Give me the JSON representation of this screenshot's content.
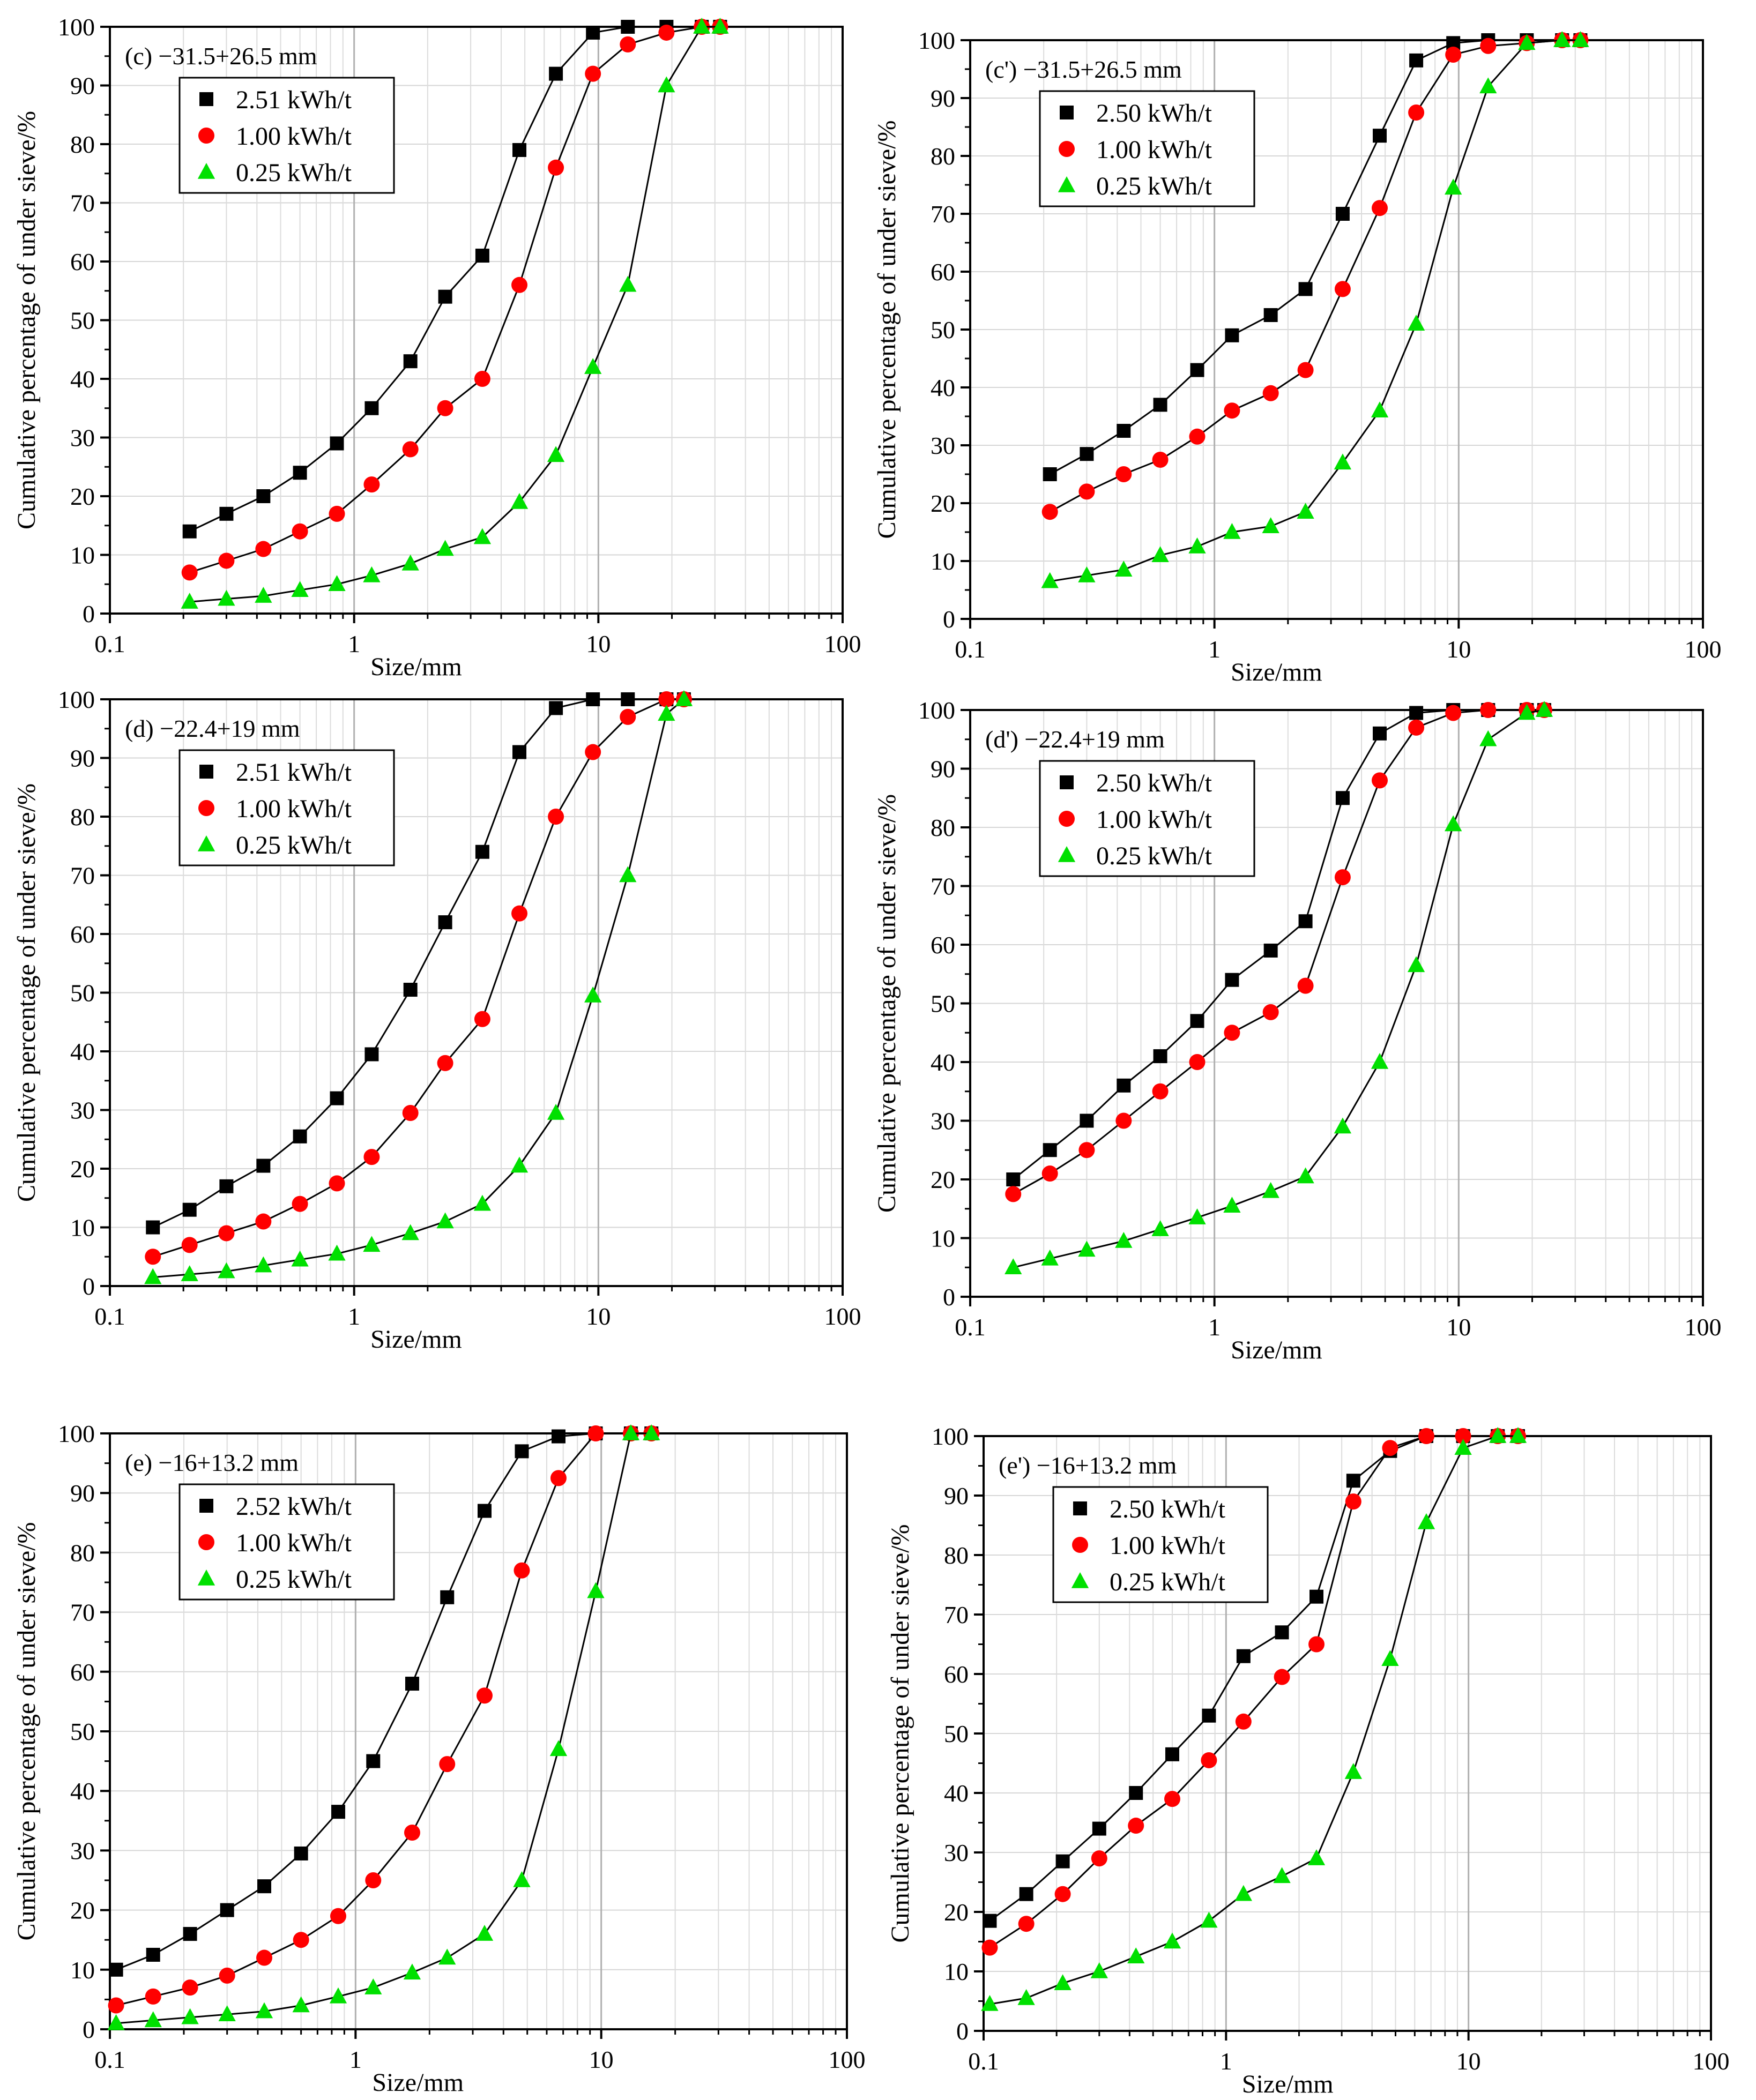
{
  "figure": {
    "series_colors": [
      "#000000",
      "#ff0000",
      "#00e000"
    ],
    "markers": [
      "square",
      "circle",
      "triangle"
    ]
  },
  "chart_data": [
    {
      "id": "c",
      "type": "line",
      "title": "(c) −31.5+26.5 mm",
      "xlabel": "Size/mm",
      "ylabel": "Cumulative percentage of under sieve/%",
      "xscale": "log",
      "xlim": [
        0.1,
        100
      ],
      "ylim": [
        0,
        100
      ],
      "xticks": [
        "0.1",
        "1",
        "10",
        "100"
      ],
      "yticks": [
        "0",
        "10",
        "20",
        "30",
        "40",
        "50",
        "60",
        "70",
        "80",
        "90",
        "100"
      ],
      "legend_position": "top-left",
      "x": [
        0.212,
        0.3,
        0.425,
        0.6,
        0.85,
        1.18,
        1.7,
        2.36,
        3.35,
        4.75,
        6.7,
        9.5,
        13.2,
        19,
        26.5,
        31.5
      ],
      "series": [
        {
          "name": "2.51 kWh/t",
          "values": [
            14,
            17,
            20,
            24,
            29,
            35,
            43,
            54,
            61,
            79,
            92,
            99,
            100,
            100,
            100,
            100
          ]
        },
        {
          "name": "1.00 kWh/t",
          "values": [
            7,
            9,
            11,
            14,
            17,
            22,
            28,
            35,
            40,
            56,
            76,
            92,
            97,
            99,
            100,
            100
          ]
        },
        {
          "name": "0.25 kWh/t",
          "values": [
            2,
            2.5,
            3,
            4,
            5,
            6.5,
            8.5,
            11,
            13,
            19,
            27,
            42,
            56,
            90,
            100,
            100
          ]
        }
      ]
    },
    {
      "id": "c'",
      "type": "line",
      "title": "(c') −31.5+26.5 mm",
      "xlabel": "Size/mm",
      "ylabel": "Cumulative percentage of under sieve/%",
      "xscale": "log",
      "xlim": [
        0.1,
        100
      ],
      "ylim": [
        0,
        100
      ],
      "xticks": [
        "0.1",
        "1",
        "10",
        "100"
      ],
      "yticks": [
        "0",
        "10",
        "20",
        "30",
        "40",
        "50",
        "60",
        "70",
        "80",
        "90",
        "100"
      ],
      "legend_position": "top-left",
      "x": [
        0.212,
        0.3,
        0.425,
        0.6,
        0.85,
        1.18,
        1.7,
        2.36,
        3.35,
        4.75,
        6.7,
        9.5,
        13.2,
        19,
        26.5,
        31.5
      ],
      "series": [
        {
          "name": "2.50 kWh/t",
          "values": [
            25,
            28.5,
            32.5,
            37,
            43,
            49,
            52.5,
            57,
            70,
            83.5,
            96.5,
            99.5,
            100,
            100,
            100,
            100
          ]
        },
        {
          "name": "1.00 kWh/t",
          "values": [
            18.5,
            22,
            25,
            27.5,
            31.5,
            36,
            39,
            43,
            57,
            71,
            87.5,
            97.5,
            99,
            99.5,
            100,
            100
          ]
        },
        {
          "name": "0.25 kWh/t",
          "values": [
            6.5,
            7.5,
            8.5,
            11,
            12.5,
            15,
            16,
            18.5,
            27,
            36,
            51,
            74.5,
            92,
            99.5,
            100,
            100
          ]
        }
      ]
    },
    {
      "id": "d",
      "type": "line",
      "title": "(d) −22.4+19 mm",
      "xlabel": "Size/mm",
      "ylabel": "Cumulative percentage of under sieve/%",
      "xscale": "log",
      "xlim": [
        0.1,
        100
      ],
      "ylim": [
        0,
        100
      ],
      "xticks": [
        "0.1",
        "1",
        "10",
        "100"
      ],
      "yticks": [
        "0",
        "10",
        "20",
        "30",
        "40",
        "50",
        "60",
        "70",
        "80",
        "90",
        "100"
      ],
      "legend_position": "top-left",
      "x": [
        0.15,
        0.212,
        0.3,
        0.425,
        0.6,
        0.85,
        1.18,
        1.7,
        2.36,
        3.35,
        4.75,
        6.7,
        9.5,
        13.2,
        19,
        22.4
      ],
      "series": [
        {
          "name": "2.51 kWh/t",
          "values": [
            10,
            13,
            17,
            20.5,
            25.5,
            32,
            39.5,
            50.5,
            62,
            74,
            91,
            98.5,
            100,
            100,
            100,
            100
          ]
        },
        {
          "name": "1.00 kWh/t",
          "values": [
            5,
            7,
            9,
            11,
            14,
            17.5,
            22,
            29.5,
            38,
            45.5,
            63.5,
            80,
            91,
            97,
            100,
            100
          ]
        },
        {
          "name": "0.25 kWh/t",
          "values": [
            1.5,
            2,
            2.5,
            3.5,
            4.5,
            5.5,
            7,
            9,
            11,
            14,
            20.5,
            29.5,
            49.5,
            70,
            97.5,
            100
          ]
        }
      ]
    },
    {
      "id": "d'",
      "type": "line",
      "title": "(d') −22.4+19 mm",
      "xlabel": "Size/mm",
      "ylabel": "Cumulative percentage of under sieve/%",
      "xscale": "log",
      "xlim": [
        0.1,
        100
      ],
      "ylim": [
        0,
        100
      ],
      "xticks": [
        "0.1",
        "1",
        "10",
        "100"
      ],
      "yticks": [
        "0",
        "10",
        "20",
        "30",
        "40",
        "50",
        "60",
        "70",
        "80",
        "90",
        "100"
      ],
      "legend_position": "top-left",
      "x": [
        0.15,
        0.212,
        0.3,
        0.425,
        0.6,
        0.85,
        1.18,
        1.7,
        2.36,
        3.35,
        4.75,
        6.7,
        9.5,
        13.2,
        19,
        22.4
      ],
      "series": [
        {
          "name": "2.50 kWh/t",
          "values": [
            20,
            25,
            30,
            36,
            41,
            47,
            54,
            59,
            64,
            85,
            96,
            99.5,
            100,
            100,
            100,
            100
          ]
        },
        {
          "name": "1.00 kWh/t",
          "values": [
            17.5,
            21,
            25,
            30,
            35,
            40,
            45,
            48.5,
            53,
            71.5,
            88,
            97,
            99.5,
            100,
            100,
            100
          ]
        },
        {
          "name": "0.25 kWh/t",
          "values": [
            5,
            6.5,
            8,
            9.5,
            11.5,
            13.5,
            15.5,
            18,
            20.5,
            29,
            40,
            56.5,
            80.5,
            95,
            99.5,
            100
          ]
        }
      ]
    },
    {
      "id": "e",
      "type": "line",
      "title": "(e) −16+13.2 mm",
      "xlabel": "Size/mm",
      "ylabel": "Cumulative percentage of under sieve/%",
      "xscale": "log",
      "xlim": [
        0.1,
        100
      ],
      "ylim": [
        0,
        100
      ],
      "xticks": [
        "0.1",
        "1",
        "10",
        "100"
      ],
      "yticks": [
        "0",
        "10",
        "20",
        "30",
        "40",
        "50",
        "60",
        "70",
        "80",
        "90",
        "100"
      ],
      "legend_position": "top-left",
      "x": [
        0.106,
        0.15,
        0.212,
        0.3,
        0.425,
        0.6,
        0.85,
        1.18,
        1.7,
        2.36,
        3.35,
        4.75,
        6.7,
        9.5,
        13.2,
        16
      ],
      "series": [
        {
          "name": "2.52 kWh/t",
          "values": [
            10,
            12.5,
            16,
            20,
            24,
            29.5,
            36.5,
            45,
            58,
            72.5,
            87,
            97,
            99.5,
            100,
            100,
            100
          ]
        },
        {
          "name": "1.00 kWh/t",
          "values": [
            4,
            5.5,
            7,
            9,
            12,
            15,
            19,
            25,
            33,
            44.5,
            56,
            77,
            92.5,
            100,
            100,
            100
          ]
        },
        {
          "name": "0.25 kWh/t",
          "values": [
            1,
            1.5,
            2,
            2.5,
            3,
            4,
            5.5,
            7,
            9.5,
            12,
            16,
            25,
            47,
            73.5,
            100,
            100
          ]
        }
      ]
    },
    {
      "id": "e'",
      "type": "line",
      "title": "(e') −16+13.2 mm",
      "xlabel": "Size/mm",
      "ylabel": "Cumulative percentage of under sieve/%",
      "xscale": "log",
      "xlim": [
        0.1,
        100
      ],
      "ylim": [
        0,
        100
      ],
      "xticks": [
        "0.1",
        "1",
        "10",
        "100"
      ],
      "yticks": [
        "0",
        "10",
        "20",
        "30",
        "40",
        "50",
        "60",
        "70",
        "80",
        "90",
        "100"
      ],
      "legend_position": "top-left",
      "x": [
        0.106,
        0.15,
        0.212,
        0.3,
        0.425,
        0.6,
        0.85,
        1.18,
        1.7,
        2.36,
        3.35,
        4.75,
        6.7,
        9.5,
        13.2,
        16
      ],
      "series": [
        {
          "name": "2.50 kWh/t",
          "values": [
            18.5,
            23,
            28.5,
            34,
            40,
            46.5,
            53,
            63,
            67,
            73,
            92.5,
            97.5,
            100,
            100,
            100,
            100
          ]
        },
        {
          "name": "1.00 kWh/t",
          "values": [
            14,
            18,
            23,
            29,
            34.5,
            39,
            45.5,
            52,
            59.5,
            65,
            89,
            98,
            100,
            100,
            100,
            100
          ]
        },
        {
          "name": "0.25 kWh/t",
          "values": [
            4.5,
            5.5,
            8,
            10,
            12.5,
            15,
            18.5,
            23,
            26,
            29,
            43.5,
            62.5,
            85.5,
            98,
            100,
            100
          ]
        }
      ]
    }
  ]
}
